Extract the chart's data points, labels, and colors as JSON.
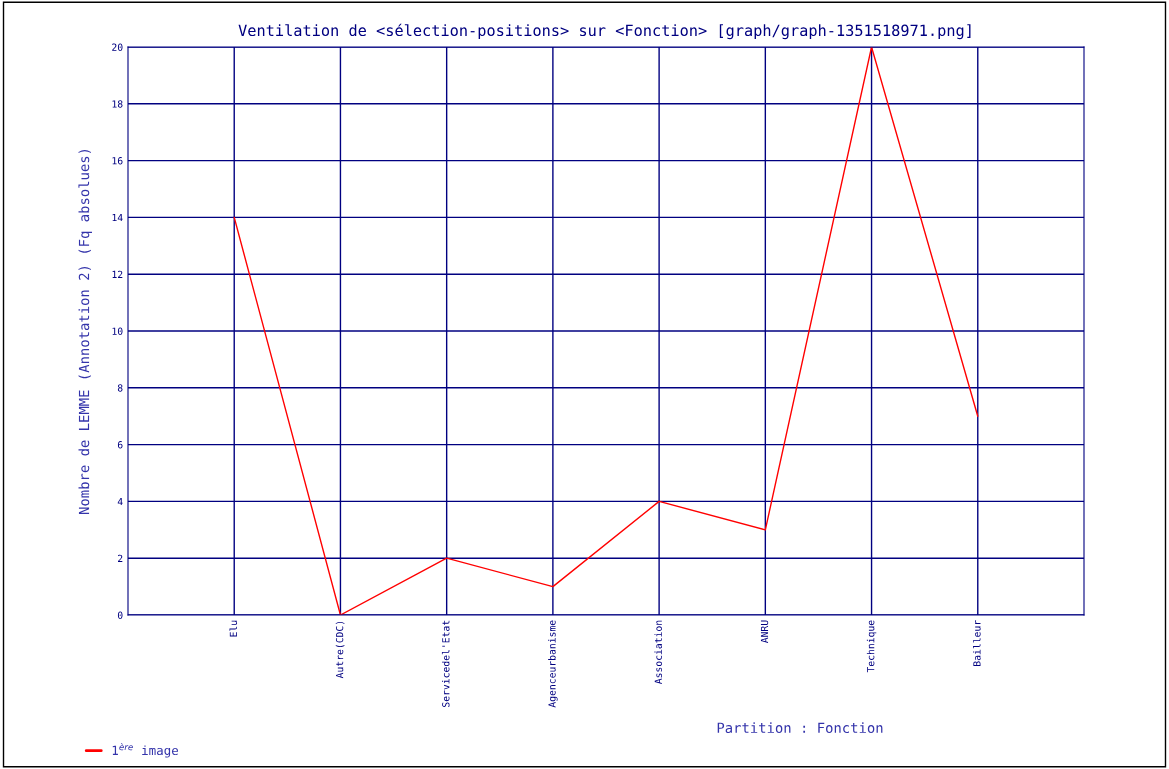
{
  "chart_data": {
    "type": "line",
    "title": "Ventilation de <sélection-positions> sur <Fonction> [graph/graph-1351518971.png]",
    "xlabel": "Partition : Fonction",
    "ylabel": "Nombre de LEMME (Annotation 2) (Fq absolues)",
    "categories": [
      "Elu",
      "Autre(CDC)",
      "Servicedel'Etat",
      "Agenceurbanisme",
      "Association",
      "ANRU",
      "Technique",
      "Bailleur"
    ],
    "series": [
      {
        "name": "1$^{ère}$ image",
        "color": "#ff0000",
        "values": [
          14,
          0,
          2,
          1,
          4,
          3,
          20,
          7
        ]
      }
    ],
    "ylim": [
      0,
      20
    ],
    "yticks": [
      0,
      2,
      4,
      6,
      8,
      10,
      12,
      14,
      16,
      18,
      20
    ],
    "grid": true,
    "legend": "bottom left",
    "marker": "none"
  }
}
